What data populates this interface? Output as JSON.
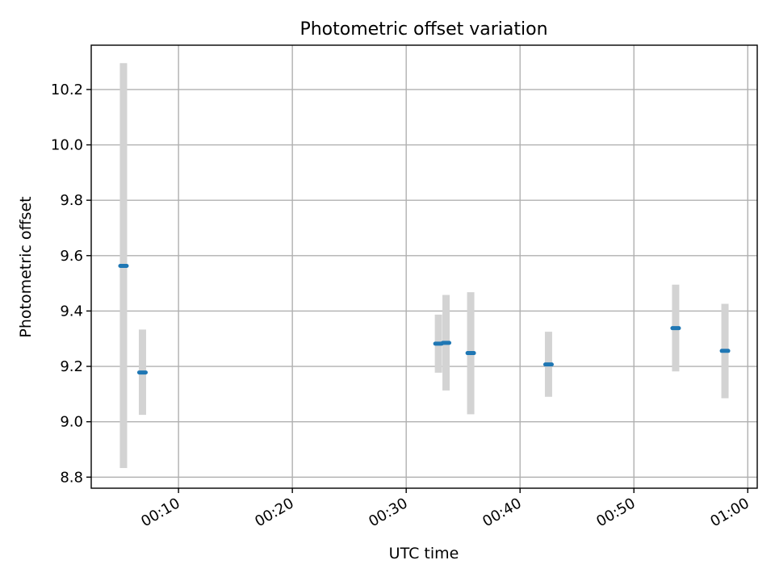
{
  "chart_data": {
    "type": "scatter",
    "title": "Photometric offset variation",
    "xlabel": "UTC time",
    "ylabel": "Photometric offset",
    "xlim": [
      "00:02:20",
      "01:00:50"
    ],
    "ylim": [
      8.76,
      10.36
    ],
    "grid": true,
    "x_ticks": [
      "00:10",
      "00:20",
      "00:30",
      "00:40",
      "00:50",
      "01:00"
    ],
    "y_ticks": [
      "8.8",
      "9.0",
      "9.2",
      "9.4",
      "9.6",
      "9.8",
      "10.0",
      "10.2"
    ],
    "series": [
      {
        "points": [
          {
            "x": "00:05:10",
            "y": 9.563,
            "yerr_low": 8.833,
            "yerr_high": 10.295
          },
          {
            "x": "00:06:50",
            "y": 9.178,
            "yerr_low": 9.025,
            "yerr_high": 9.333
          },
          {
            "x": "00:32:50",
            "y": 9.282,
            "yerr_low": 9.177,
            "yerr_high": 9.387
          },
          {
            "x": "00:33:30",
            "y": 9.285,
            "yerr_low": 9.113,
            "yerr_high": 9.458
          },
          {
            "x": "00:35:40",
            "y": 9.248,
            "yerr_low": 9.027,
            "yerr_high": 9.468
          },
          {
            "x": "00:42:30",
            "y": 9.207,
            "yerr_low": 9.09,
            "yerr_high": 9.325
          },
          {
            "x": "00:53:40",
            "y": 9.338,
            "yerr_low": 9.182,
            "yerr_high": 9.495
          },
          {
            "x": "00:58:00",
            "y": 9.256,
            "yerr_low": 9.085,
            "yerr_high": 9.426
          }
        ]
      }
    ]
  },
  "colors": {
    "marker": "#1f77b4",
    "error_bar": "#d3d3d3",
    "grid": "#b0b0b0",
    "axes": "#000000"
  }
}
